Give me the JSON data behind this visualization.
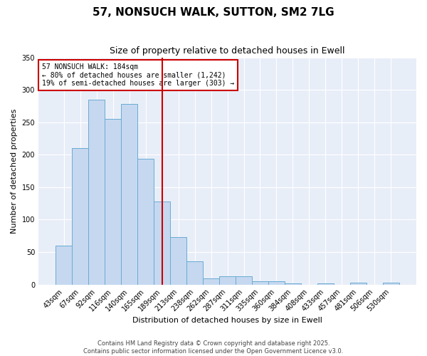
{
  "title": "57, NONSUCH WALK, SUTTON, SM2 7LG",
  "subtitle": "Size of property relative to detached houses in Ewell",
  "xlabel": "Distribution of detached houses by size in Ewell",
  "ylabel": "Number of detached properties",
  "bar_color": "#c5d8f0",
  "bar_edge_color": "#6aabd2",
  "bar_width": 1.0,
  "categories": [
    "43sqm",
    "67sqm",
    "92sqm",
    "116sqm",
    "140sqm",
    "165sqm",
    "189sqm",
    "213sqm",
    "238sqm",
    "262sqm",
    "287sqm",
    "311sqm",
    "335sqm",
    "360sqm",
    "384sqm",
    "408sqm",
    "433sqm",
    "457sqm",
    "481sqm",
    "506sqm",
    "530sqm"
  ],
  "values": [
    60,
    210,
    285,
    255,
    278,
    194,
    128,
    73,
    36,
    10,
    13,
    13,
    5,
    5,
    2,
    0,
    2,
    0,
    3,
    0,
    3
  ],
  "vline_position": 6.5,
  "vline_color": "#cc0000",
  "ylim": [
    0,
    350
  ],
  "yticks": [
    0,
    50,
    100,
    150,
    200,
    250,
    300,
    350
  ],
  "annotation_title": "57 NONSUCH WALK: 184sqm",
  "annotation_line1": "← 80% of detached houses are smaller (1,242)",
  "annotation_line2": "19% of semi-detached houses are larger (303) →",
  "footer1": "Contains HM Land Registry data © Crown copyright and database right 2025.",
  "footer2": "Contains public sector information licensed under the Open Government Licence v3.0.",
  "bg_color": "#e8eef8",
  "fig_color": "#ffffff",
  "grid_color": "#ffffff",
  "title_fontsize": 11,
  "subtitle_fontsize": 9,
  "tick_fontsize": 7,
  "label_fontsize": 8,
  "footer_fontsize": 6
}
